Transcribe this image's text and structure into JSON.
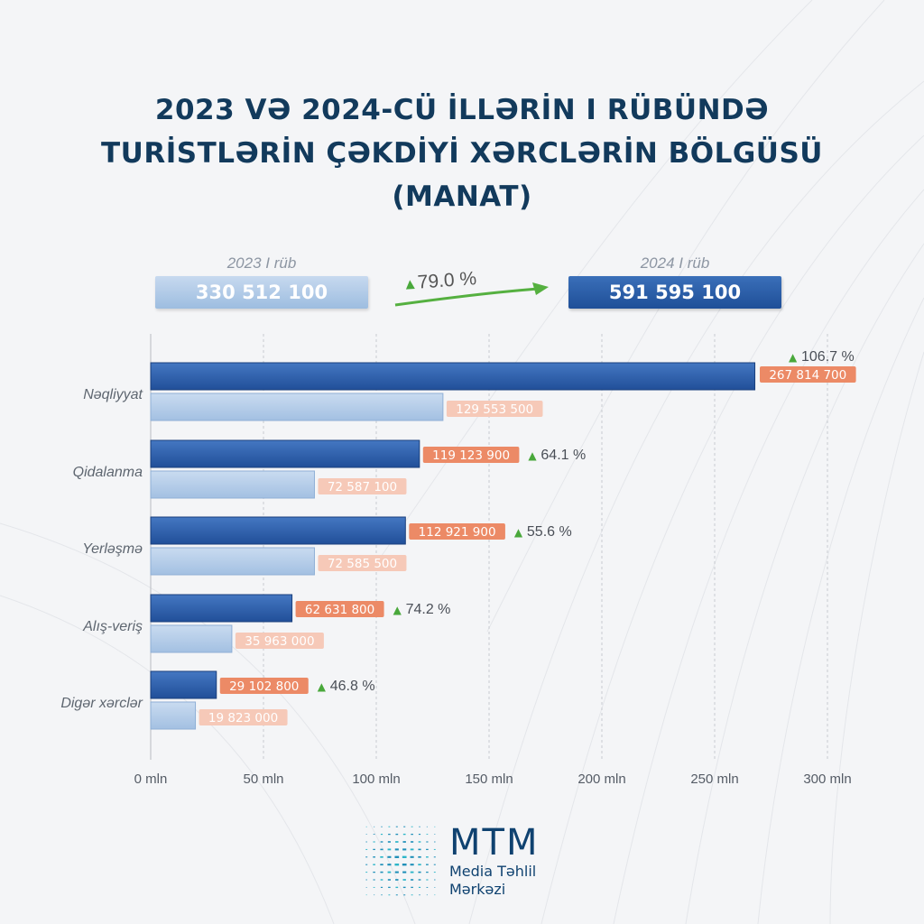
{
  "title": {
    "line1": "2023 VƏ 2024-CÜ İLLƏRİN I RÜBÜNDƏ",
    "line2": "TURİSTLƏRİN ÇƏKDİYİ XƏRCLƏRİN BÖLGÜSÜ",
    "line3": "(MANAT)"
  },
  "totals": {
    "label_2023": "2023 I rüb",
    "value_2023": "330 512 100",
    "label_2024": "2024 I rüb",
    "value_2024": "591 595 100",
    "growth": "79.0 %"
  },
  "chart_data": {
    "type": "bar",
    "orientation": "horizontal",
    "categories": [
      "Nəqliyyat",
      "Qidalanma",
      "Yerləşmə",
      "Alış-veriş",
      "Digər xərclər"
    ],
    "series": [
      {
        "name": "2024 I rüb",
        "values": [
          267814700,
          119123900,
          112921900,
          62631800,
          29102800
        ],
        "labels": [
          "267 814 700",
          "119 123 900",
          "112 921 900",
          "62 631 800",
          "29 102 800"
        ],
        "color": "#2a5ba8"
      },
      {
        "name": "2023 I rüb",
        "values": [
          129553500,
          72587100,
          72585500,
          35963000,
          19823000
        ],
        "labels": [
          "129 553 500",
          "72 587 100",
          "72 585 500",
          "35 963 000",
          "19 823 000"
        ],
        "color": "#b3cbe8"
      }
    ],
    "growth": [
      "106.7 %",
      "64.1 %",
      "55.6 %",
      "74.2 %",
      "46.8 %"
    ],
    "xlim": [
      0,
      300000000
    ],
    "xticks": [
      0,
      50000000,
      100000000,
      150000000,
      200000000,
      250000000,
      300000000
    ],
    "xtick_labels": [
      "0 mln",
      "50 mln",
      "100 mln",
      "150 mln",
      "200 mln",
      "250 mln",
      "300 mln"
    ],
    "grid": "vertical dashed",
    "colors": {
      "label_2024": "#ec8a66",
      "label_2023": "#f6c9b8",
      "growth_triangle": "#49a83b"
    }
  },
  "logo": {
    "name": "MTM",
    "line1": "Media Təhlil",
    "line2": "Mərkəzi"
  }
}
